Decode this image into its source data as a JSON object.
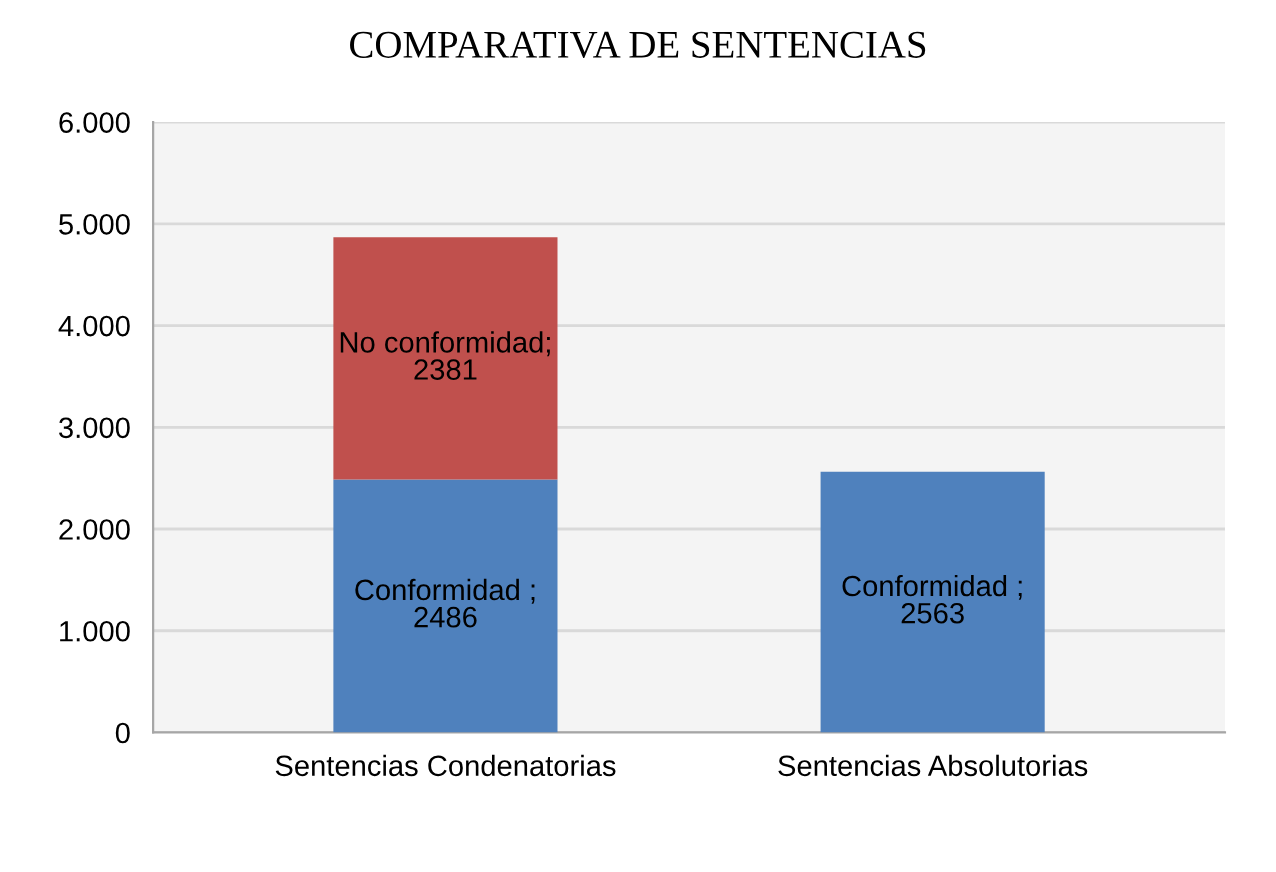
{
  "chart_data": {
    "type": "bar",
    "title": "COMPARATIVA DE SENTENCIAS",
    "categories": [
      "Sentencias Condenatorias",
      "Sentencias Absolutorias"
    ],
    "stacked": true,
    "series": [
      {
        "name": "Conformidad",
        "color": "#4f81bd",
        "values": [
          2486,
          2563
        ],
        "value_labels": [
          " ; 2486",
          " ; 2563"
        ]
      },
      {
        "name": "No conformidad",
        "color": "#c0504d",
        "values": [
          2381,
          null
        ],
        "value_labels": [
          "; 2381",
          null
        ]
      }
    ],
    "ylim": [
      0,
      6000
    ],
    "yticks": [
      0,
      {
        "value": 1000,
        "label": "1.000"
      },
      {
        "value": 2000,
        "label": "2.000"
      },
      {
        "value": 3000,
        "label": "3.000"
      },
      {
        "value": 4000,
        "label": "4.000"
      },
      {
        "value": 5000,
        "label": "5.000"
      },
      {
        "value": 6000,
        "label": "6.000"
      }
    ],
    "grid": "y",
    "legend": false
  }
}
